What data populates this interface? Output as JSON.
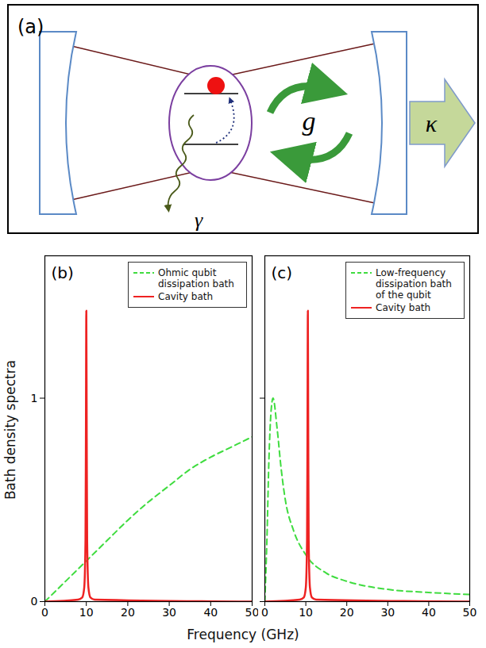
{
  "diagram": {
    "label": "(a)",
    "coupling": "g",
    "cavity_loss": "κ",
    "qubit_decay": "γ"
  },
  "axis_labels": {
    "x": "Frequency (GHz)",
    "y": "Bath density spectra"
  },
  "chart_data": [
    {
      "type": "line",
      "panel_label": "(b)",
      "xlim": [
        0,
        50
      ],
      "xticks": [
        0,
        10,
        20,
        30,
        40,
        50
      ],
      "ylim": [
        0,
        1.7
      ],
      "yticks": [
        0,
        1
      ],
      "legend": "top-right",
      "tick_labels": true,
      "series": [
        {
          "name": "Ohmic qubit dissipation bath",
          "color": "#3fdc3f",
          "line_style": "dashed",
          "x": [
            0,
            5,
            10,
            15,
            20,
            25,
            30,
            35,
            40,
            45,
            50
          ],
          "values": [
            0,
            0.1,
            0.2,
            0.3,
            0.4,
            0.49,
            0.57,
            0.65,
            0.71,
            0.76,
            0.81
          ]
        },
        {
          "name": "Cavity bath",
          "color": "#ee2222",
          "line_style": "solid",
          "x": [
            0,
            8,
            9,
            9.5,
            9.8,
            9.9,
            10,
            10.1,
            10.2,
            10.5,
            11,
            12,
            50
          ],
          "values": [
            0,
            0.01,
            0.02,
            0.07,
            0.3,
            0.8,
            1.43,
            0.8,
            0.3,
            0.07,
            0.02,
            0.01,
            0
          ]
        }
      ]
    },
    {
      "type": "line",
      "panel_label": "(c)",
      "xlim": [
        0,
        50
      ],
      "xticks": [
        0,
        10,
        20,
        30,
        40,
        50
      ],
      "ylim": [
        0,
        1.7
      ],
      "yticks": [
        0,
        1
      ],
      "legend": "top-right",
      "tick_labels": "x",
      "series": [
        {
          "name": "Low-frequency dissipation bath of the qubit",
          "color": "#3fdc3f",
          "line_style": "dashed",
          "x": [
            0,
            0.5,
            1,
            1.5,
            2,
            3,
            4,
            5,
            7,
            10,
            15,
            20,
            30,
            40,
            50
          ],
          "values": [
            0,
            0.3,
            0.7,
            0.93,
            1.0,
            0.85,
            0.65,
            0.5,
            0.35,
            0.23,
            0.14,
            0.1,
            0.06,
            0.045,
            0.035
          ]
        },
        {
          "name": "Cavity bath",
          "color": "#ee2222",
          "line_style": "solid",
          "x": [
            0,
            8.5,
            9.5,
            10,
            10.3,
            10.4,
            10.5,
            10.6,
            10.7,
            11,
            11.5,
            12.5,
            50
          ],
          "values": [
            0,
            0.01,
            0.02,
            0.07,
            0.3,
            0.8,
            1.43,
            0.8,
            0.3,
            0.07,
            0.02,
            0.01,
            0
          ]
        }
      ]
    }
  ]
}
